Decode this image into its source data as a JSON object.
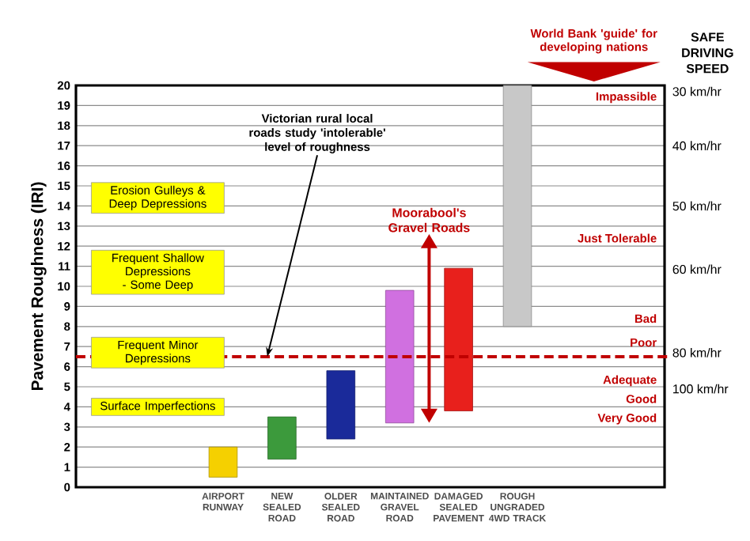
{
  "chart_data": {
    "type": "bar",
    "ylabel": "Pavement Roughness (IRI)",
    "categories": [
      null,
      null,
      "AIRPORT RUNWAY",
      "NEW SEALED ROAD",
      "OLDER SEALED ROAD",
      "MAINTAINED GRAVEL ROAD",
      "DAMAGED SEALED PAVEMENT",
      "ROUGH UNGRADED 4WD TRACK",
      null,
      null
    ],
    "base": [
      null,
      null,
      0.5,
      1.4,
      2.4,
      3.2,
      3.8,
      8,
      null,
      null
    ],
    "values": [
      null,
      null,
      1.5,
      2.1,
      3.4,
      6.6,
      7.1,
      12,
      null,
      null
    ],
    "colors": [
      null,
      null,
      "#f5d000",
      "#3c9a3c",
      "#1a2a9a",
      "#d070e0",
      "#e8201c",
      "#c8c8c8",
      null,
      null
    ],
    "ylim": [
      0,
      20
    ],
    "yticks": [
      0,
      1,
      2,
      3,
      4,
      5,
      6,
      7,
      8,
      9,
      10,
      11,
      12,
      13,
      14,
      15,
      16,
      17,
      18,
      19,
      20
    ],
    "grid": "y",
    "ref_lines": [
      {
        "axis": "y",
        "value": 6.5,
        "label": "Victorian rural local roads study 'intolerable' level of roughness",
        "color": "#c00000",
        "line_style": "dashed"
      }
    ],
    "annotations": [
      "Erosion Gulleys & Deep Depressions",
      "Frequent Shallow Depressions - Some Deep",
      "Frequent Minor Depressions",
      "Surface Imperfections",
      "Impassible",
      "Just Tolerable",
      "Bad",
      "Poor",
      "Adequate",
      "Good",
      "Very Good",
      "30 km/hr",
      "40 km/hr",
      "50 km/hr",
      "60 km/hr",
      "80 km/hr",
      "100 km/hr",
      "SAFE DRIVING SPEED",
      "Moorabool's Gravel Roads",
      "World Bank 'guide' for developing nations"
    ]
  }
}
